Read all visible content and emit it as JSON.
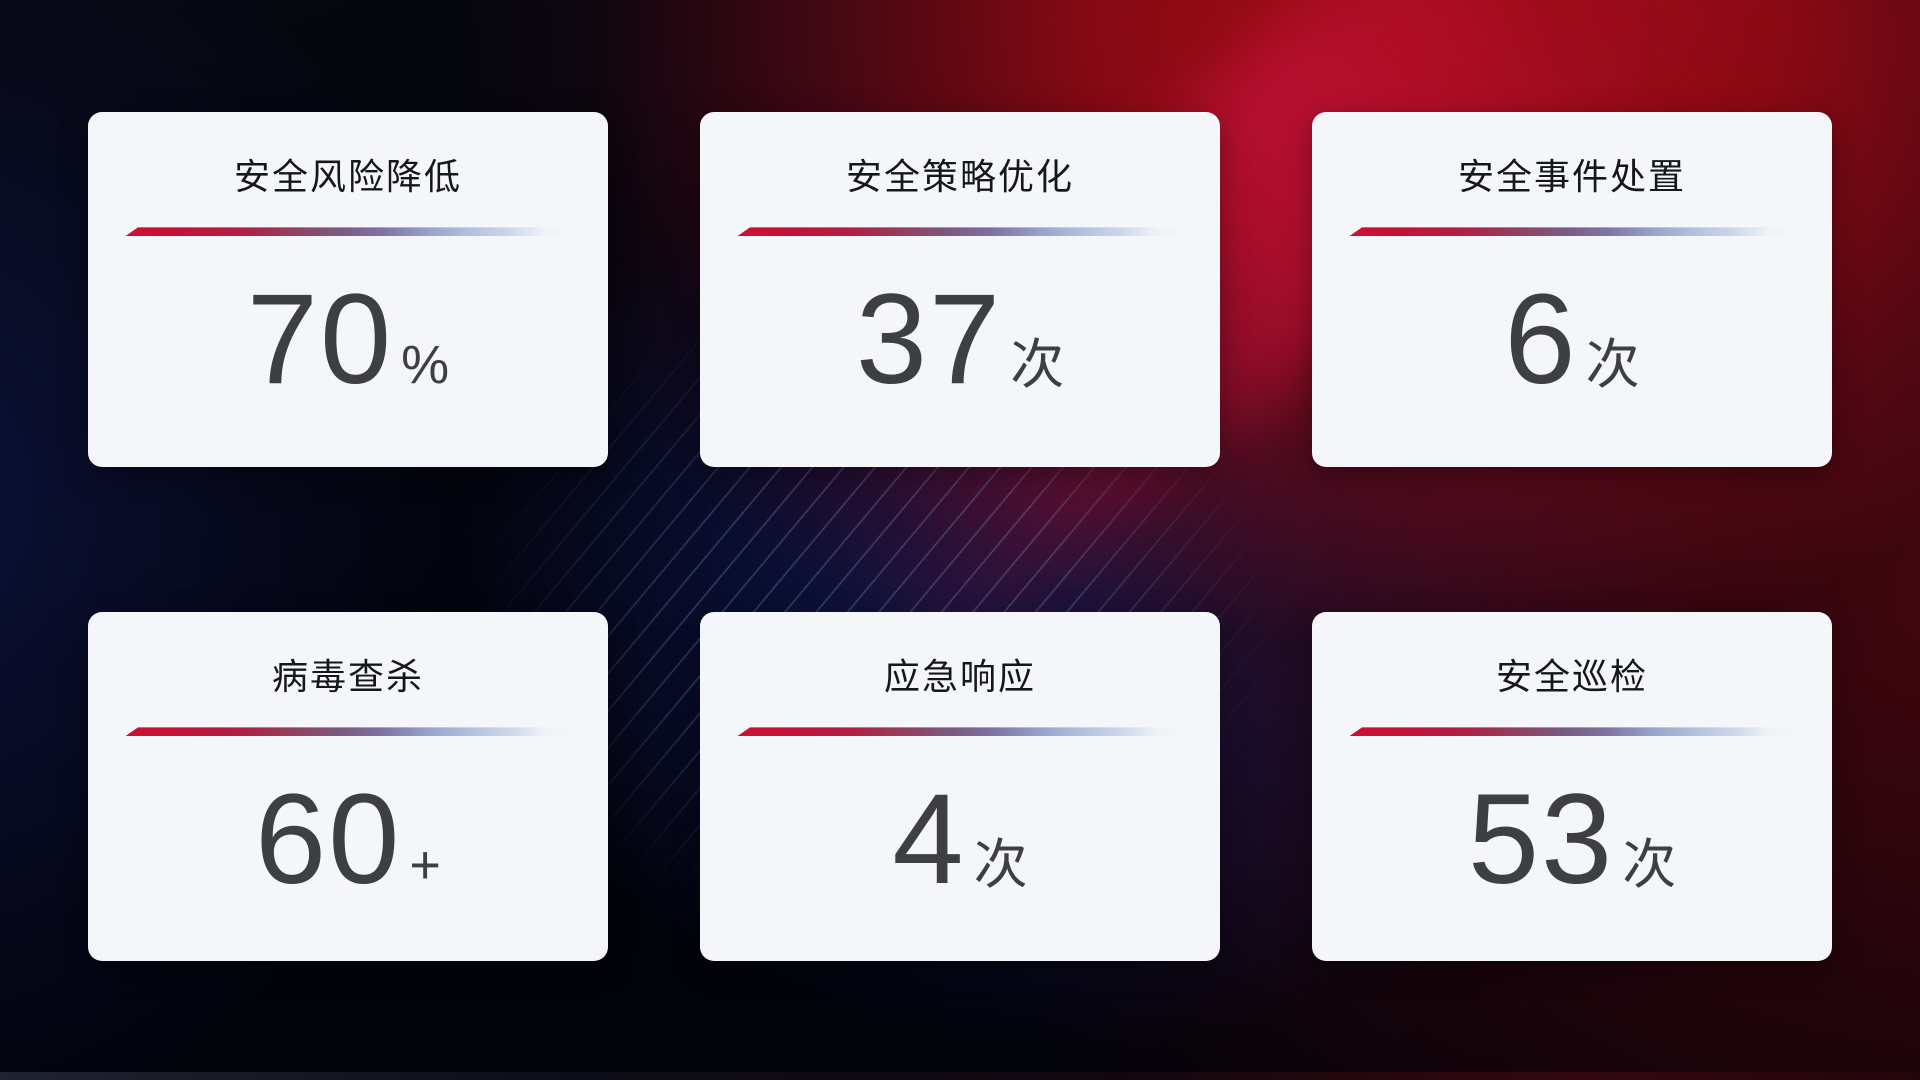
{
  "cards": [
    {
      "title": "安全风险降低",
      "value": "70",
      "unit": "%"
    },
    {
      "title": "安全策略优化",
      "value": "37",
      "unit": "次"
    },
    {
      "title": "安全事件处置",
      "value": "6",
      "unit": "次"
    },
    {
      "title": "病毒查杀",
      "value": "60",
      "unit": "+"
    },
    {
      "title": "应急响应",
      "value": "4",
      "unit": "次"
    },
    {
      "title": "安全巡检",
      "value": "53",
      "unit": "次"
    }
  ],
  "theme": {
    "card_background": "#f5f6f9",
    "title_color": "#15171c",
    "value_color": "#3d3f45",
    "divider_gradient_start": "#ce0f33",
    "divider_gradient_mid": "#7a5a80",
    "divider_gradient_end": "#b3c3de",
    "background_red": "#a30d15",
    "background_maroon": "#2c090c",
    "background_navy": "#0d1636",
    "background_blue": "#1c2d7e"
  }
}
